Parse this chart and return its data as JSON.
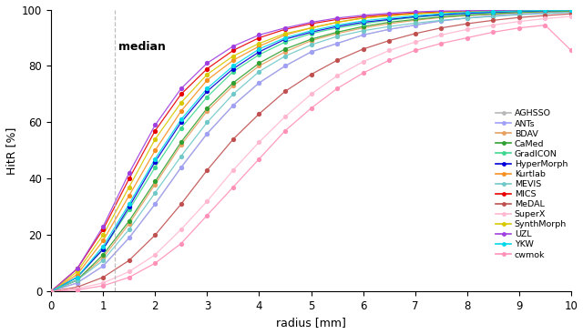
{
  "xlabel": "radius [mm]",
  "ylabel": "HitR [%]",
  "xlim": [
    0,
    10
  ],
  "ylim": [
    0,
    100
  ],
  "median_x": 1.22,
  "median_label": "median",
  "legend_entries": [
    "AGHSSO",
    "ANTs",
    "BDAV",
    "CaMed",
    "GradICON",
    "HyperMorph",
    "Kurtlab",
    "MEVIS",
    "MICS",
    "MeDAL",
    "SuperX",
    "SynthMorph",
    "UZL",
    "YKW",
    "cwmok"
  ],
  "colors": {
    "AGHSSO": "#b8b8b8",
    "ANTs": "#a0a0f8",
    "BDAV": "#e8a060",
    "CaMed": "#30a030",
    "GradICON": "#40d890",
    "HyperMorph": "#0000d8",
    "Kurtlab": "#f89020",
    "MEVIS": "#70c8c8",
    "MICS": "#e80000",
    "MeDAL": "#c05050",
    "SuperX": "#ffb8d0",
    "SynthMorph": "#d8c800",
    "UZL": "#a040e0",
    "YKW": "#00d8e8",
    "cwmok": "#ff90b8"
  },
  "x_values": [
    0.0,
    0.5,
    1.0,
    1.5,
    2.0,
    2.5,
    3.0,
    3.5,
    4.0,
    4.5,
    5.0,
    5.5,
    6.0,
    6.5,
    7.0,
    7.5,
    8.0,
    8.5,
    9.0,
    9.5,
    10.0
  ],
  "curves": {
    "AGHSSO": [
      0,
      3,
      9,
      19,
      31,
      44,
      56,
      66,
      74,
      80,
      85,
      88,
      91,
      93,
      94.5,
      96,
      97,
      97.8,
      98.4,
      98.8,
      99.2
    ],
    "ANTs": [
      0,
      3,
      9,
      19,
      31,
      44,
      56,
      66,
      74,
      80,
      85,
      88,
      91,
      93,
      94.5,
      96,
      97,
      97.8,
      98.4,
      98.8,
      99.2
    ],
    "BDAV": [
      0,
      4,
      12,
      24,
      38,
      52,
      64,
      73,
      80,
      85,
      89,
      91.5,
      93.5,
      95,
      96.2,
      97.2,
      97.9,
      98.4,
      98.9,
      99.2,
      99.4
    ],
    "CaMed": [
      0,
      4,
      13,
      25,
      39,
      53,
      65,
      74,
      81,
      86,
      89.5,
      92,
      94,
      95.5,
      96.5,
      97.4,
      98,
      98.5,
      99,
      99.3,
      99.5
    ],
    "GradICON": [
      0,
      5,
      15,
      29,
      44,
      58,
      69,
      78,
      84,
      88.5,
      91.5,
      93.5,
      95,
      96.3,
      97.2,
      98,
      98.5,
      99,
      99.3,
      99.5,
      99.7
    ],
    "HyperMorph": [
      0,
      5,
      15,
      30,
      46,
      60,
      71,
      79,
      85,
      89.5,
      92,
      94,
      95.5,
      96.5,
      97.5,
      98.2,
      98.7,
      99.1,
      99.4,
      99.6,
      99.8
    ],
    "Kurtlab": [
      0,
      6,
      18,
      34,
      50,
      64,
      75,
      82,
      87,
      91,
      93.5,
      95.5,
      97,
      97.8,
      98.5,
      99,
      99.3,
      99.5,
      99.7,
      99.8,
      99.9
    ],
    "MEVIS": [
      0,
      4,
      11,
      22,
      35,
      48,
      60,
      70,
      78,
      83.5,
      87.5,
      90.5,
      92.5,
      94,
      95.2,
      96.2,
      97,
      97.6,
      98.2,
      98.6,
      99.0
    ],
    "MICS": [
      0,
      8,
      22,
      40,
      57,
      70,
      79,
      85.5,
      90,
      93,
      95,
      96.5,
      97.5,
      98.2,
      98.8,
      99.2,
      99.4,
      99.6,
      99.7,
      99.8,
      99.9
    ],
    "MeDAL": [
      0,
      1.5,
      5,
      11,
      20,
      31,
      43,
      54,
      63,
      71,
      77,
      82,
      86,
      89,
      91.5,
      93.5,
      95,
      96.2,
      97.2,
      97.9,
      98.5
    ],
    "SuperX": [
      0,
      1,
      3,
      7,
      13,
      22,
      32,
      43,
      53,
      62,
      70,
      76.5,
      81.5,
      85.5,
      88.5,
      91,
      93,
      94.5,
      95.8,
      96.8,
      97.6
    ],
    "SynthMorph": [
      0,
      7,
      20,
      37,
      54,
      67,
      77,
      83.5,
      88,
      91.5,
      93.5,
      95.5,
      97,
      97.8,
      98.5,
      99,
      99.3,
      99.5,
      99.7,
      99.8,
      99.9
    ],
    "UZL": [
      0,
      8,
      23,
      42,
      59,
      72,
      81,
      87,
      91,
      93.5,
      95.5,
      97,
      98,
      98.7,
      99.2,
      99.5,
      99.6,
      99.7,
      99.8,
      99.85,
      99.9
    ],
    "YKW": [
      0,
      5,
      16,
      31,
      47,
      61,
      72,
      80,
      86,
      90,
      92.5,
      94.5,
      96,
      97,
      97.8,
      98.5,
      99,
      99.3,
      99.5,
      99.7,
      99.8
    ],
    "cwmok": [
      0,
      0.5,
      2,
      5,
      10,
      17,
      27,
      37,
      47,
      57,
      65,
      72,
      77.5,
      82,
      85.5,
      88,
      90,
      92,
      93.5,
      94.5,
      85.5
    ]
  },
  "marker_x_values": [
    0.0,
    0.5,
    1.0,
    1.5,
    2.0,
    2.5,
    3.0,
    3.5,
    4.0,
    4.5,
    5.0,
    5.5,
    6.0,
    6.5,
    7.0,
    7.5,
    8.0,
    8.5,
    9.0,
    9.5,
    10.0
  ]
}
